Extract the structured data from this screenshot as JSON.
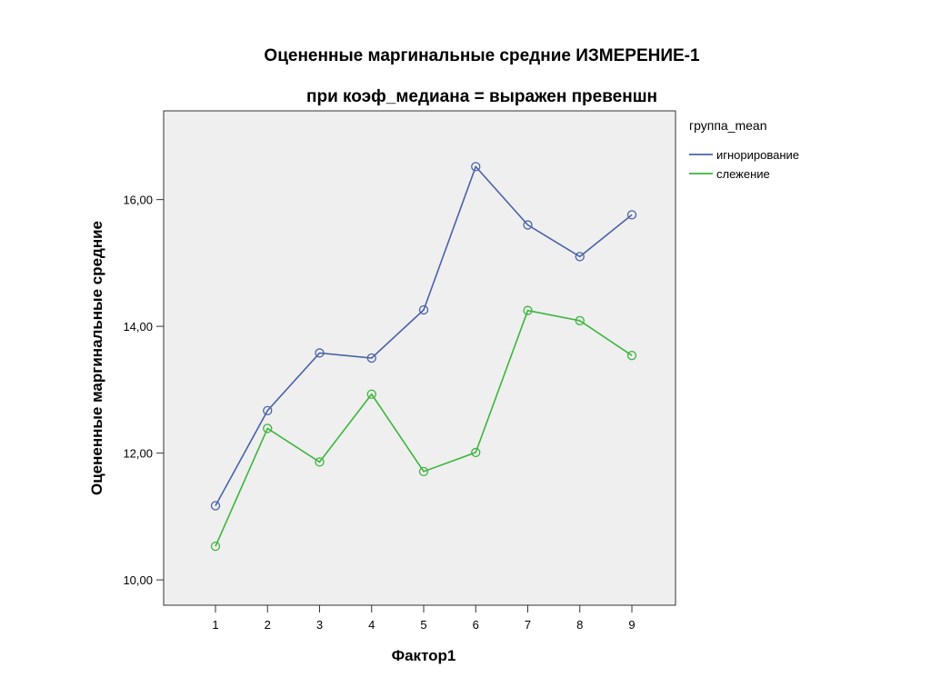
{
  "chart_data": {
    "type": "line",
    "title": "Оцененные маргинальные средние ИЗМЕРЕНИЕ-1",
    "subtitle": "при коэф_медиана = выражен превеншн",
    "xlabel": "Фактор1",
    "ylabel": "Оцененные маргинальные средние",
    "categories": [
      "1",
      "2",
      "3",
      "4",
      "5",
      "6",
      "7",
      "8",
      "9"
    ],
    "ylim": [
      9.6,
      17.4
    ],
    "yticks": [
      10,
      12,
      14,
      16
    ],
    "ytick_labels": [
      "10,00",
      "12,00",
      "14,00",
      "16,00"
    ],
    "legend_title": "группа_mean",
    "legend_position": "right",
    "grid": false,
    "plot_background": "#efefef",
    "series": [
      {
        "name": "игнорирование",
        "color": "#4a62a8",
        "values": [
          11.17,
          12.67,
          13.58,
          13.5,
          14.26,
          16.52,
          15.6,
          15.1,
          15.76
        ]
      },
      {
        "name": "слежение",
        "color": "#3db53d",
        "values": [
          10.53,
          12.39,
          11.86,
          12.93,
          11.71,
          12.01,
          14.25,
          14.09,
          13.54
        ]
      }
    ]
  }
}
